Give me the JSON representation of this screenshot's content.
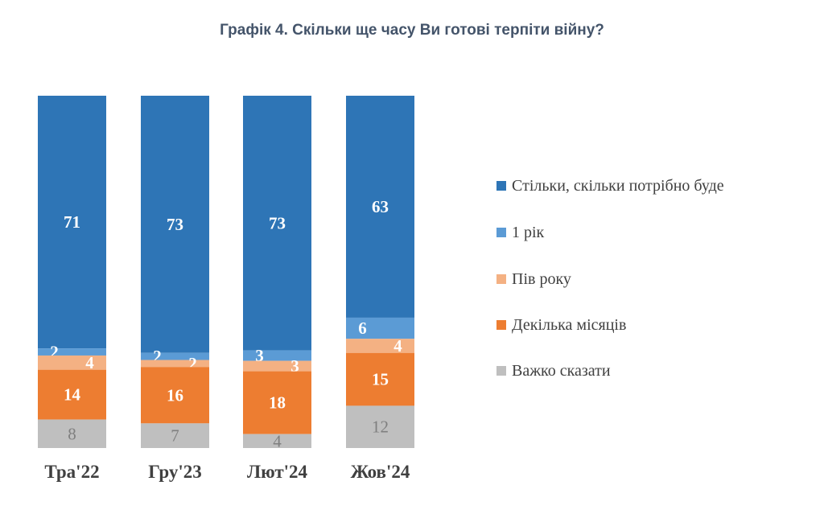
{
  "chart_data": {
    "type": "bar",
    "stacked": true,
    "title": "Графік 4. Скільки ще часу Ви готові терпіти війну?",
    "categories": [
      "Тра'22",
      "Гру'23",
      "Лют'24",
      "Жов'24"
    ],
    "series": [
      {
        "name": "Стільки, скільки потрібно буде",
        "color": "#2E75B6",
        "values": [
          71,
          73,
          73,
          63
        ]
      },
      {
        "name": "1 рік",
        "color": "#5B9BD5",
        "values": [
          2,
          2,
          3,
          6
        ]
      },
      {
        "name": "Пів року",
        "color": "#F4B183",
        "values": [
          4,
          2,
          3,
          4
        ]
      },
      {
        "name": "Декілька місяців",
        "color": "#ED7D31",
        "values": [
          14,
          16,
          18,
          15
        ]
      },
      {
        "name": "Важко сказати",
        "color": "#BFBFBF",
        "values": [
          8,
          7,
          4,
          12
        ]
      }
    ],
    "legend": "right",
    "grid": false,
    "axes_visible": false
  }
}
